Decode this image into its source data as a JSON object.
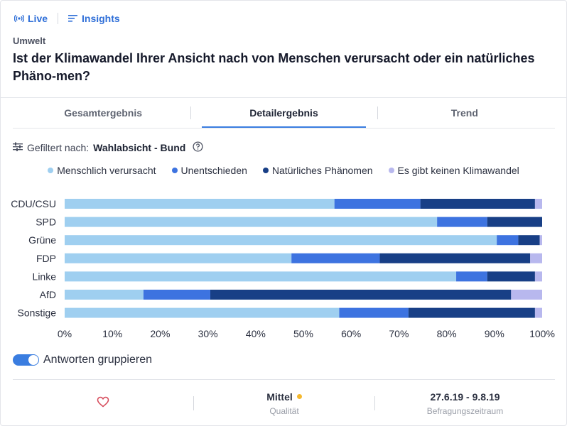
{
  "nav": {
    "live_label": "Live",
    "insights_label": "Insights"
  },
  "category": "Umwelt",
  "question": "Ist der Klimawandel Ihrer Ansicht nach von Menschen verursacht oder ein natürliches Phäno-men?",
  "tabs": {
    "overall": "Gesamtergebnis",
    "detail": "Detailergebnis",
    "trend": "Trend"
  },
  "filter": {
    "prefix": "Gefiltert nach:",
    "value": "Wahlabsicht - Bund"
  },
  "toggle": {
    "label": "Antworten gruppieren",
    "on": true
  },
  "footer": {
    "quality_value": "Mittel",
    "quality_label": "Qualität",
    "quality_color": "#f5b82e",
    "period_value": "27.6.19 - 9.8.19",
    "period_label": "Befragungszeitraum"
  },
  "colors": {
    "accent": "#3a7de0",
    "heart": "#d64a5a"
  },
  "chart_data": {
    "type": "bar",
    "orientation": "horizontal",
    "stacked": true,
    "categories": [
      "CDU/CSU",
      "SPD",
      "Grüne",
      "FDP",
      "Linke",
      "AfD",
      "Sonstige"
    ],
    "series": [
      {
        "name": "Menschlich verursacht",
        "color": "#9fcff0",
        "values": [
          56.5,
          78,
          90.5,
          47.5,
          82,
          16.5,
          57.5
        ]
      },
      {
        "name": "Unentschieden",
        "color": "#3d73e0",
        "values": [
          18,
          10.5,
          4.5,
          18.5,
          6.5,
          14,
          14.5
        ]
      },
      {
        "name": "Natürliches Phänomen",
        "color": "#183f86",
        "values": [
          24,
          11.5,
          4.5,
          31.5,
          10,
          63,
          26.5
        ]
      },
      {
        "name": "Es gibt keinen Klimawandel",
        "color": "#b8b8ee",
        "values": [
          1.5,
          0,
          0.5,
          2.5,
          1.5,
          6.5,
          1.5
        ]
      }
    ],
    "xticks": [
      "0%",
      "10%",
      "20%",
      "30%",
      "40%",
      "50%",
      "60%",
      "70%",
      "80%",
      "90%",
      "100%"
    ],
    "xlim": [
      0,
      100
    ],
    "legend_position": "top-center",
    "grid": false
  }
}
